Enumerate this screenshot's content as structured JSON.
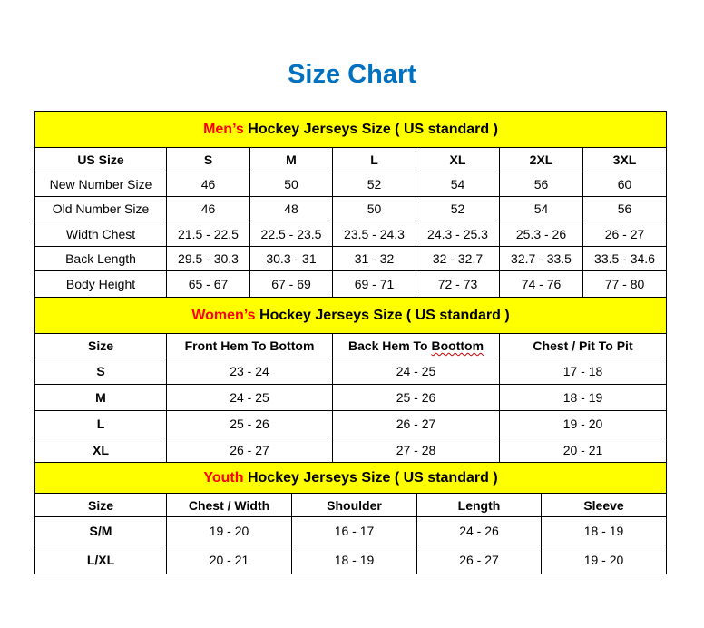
{
  "title": "Size Chart",
  "colors": {
    "title": "#0070C0",
    "header_bg": "#FFFF00",
    "accent": "#FF0000"
  },
  "men": {
    "heading_accent": "Men’s",
    "heading_rest": " Hockey Jerseys Size ( US standard )",
    "columns": [
      "US Size",
      "S",
      "M",
      "L",
      "XL",
      "2XL",
      "3XL"
    ],
    "rows": [
      [
        "New Number Size",
        "46",
        "50",
        "52",
        "54",
        "56",
        "60"
      ],
      [
        "Old Number Size",
        "46",
        "48",
        "50",
        "52",
        "54",
        "56"
      ],
      [
        "Width Chest",
        "21.5 - 22.5",
        "22.5 - 23.5",
        "23.5 - 24.3",
        "24.3 - 25.3",
        "25.3 - 26",
        "26 - 27"
      ],
      [
        "Back Length",
        "29.5 - 30.3",
        "30.3 - 31",
        "31 - 32",
        "32 - 32.7",
        "32.7 - 33.5",
        "33.5 - 34.6"
      ],
      [
        "Body Height",
        "65 - 67",
        "67 - 69",
        "69 - 71",
        "72 - 73",
        "74 - 76",
        "77 - 80"
      ]
    ]
  },
  "women": {
    "heading_accent": "Women’s",
    "heading_rest": " Hockey Jerseys Size ( US standard )",
    "columns": [
      "Size",
      "Front Hem To Bottom",
      "Back Hem To Boottom",
      "Chest / Pit To Pit"
    ],
    "rows": [
      [
        "S",
        "23 - 24",
        "24 - 25",
        "17 - 18"
      ],
      [
        "M",
        "24 - 25",
        "25 - 26",
        "18 - 19"
      ],
      [
        "L",
        "25 - 26",
        "26 - 27",
        "19 - 20"
      ],
      [
        "XL",
        "26 - 27",
        "27 - 28",
        "20 - 21"
      ]
    ]
  },
  "youth": {
    "heading_accent": "Youth",
    "heading_rest": " Hockey Jerseys Size ( US standard )",
    "columns": [
      "Size",
      "Chest / Width",
      "Shoulder",
      "Length",
      "Sleeve"
    ],
    "rows": [
      [
        "S/M",
        "19 - 20",
        "16 - 17",
        "24 - 26",
        "18 - 19"
      ],
      [
        "L/XL",
        "20 - 21",
        "18 - 19",
        "26 - 27",
        "19 - 20"
      ]
    ]
  }
}
